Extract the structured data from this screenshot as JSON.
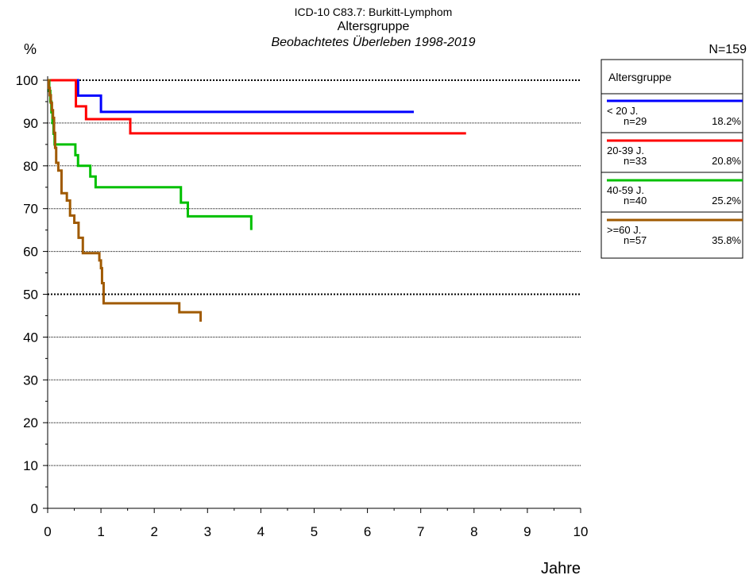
{
  "chart_data": {
    "type": "step",
    "title": "ICD-10 C83.7: Burkitt-Lymphom",
    "subtitle": "Altersgruppe",
    "subtitle2": "Beobachtetes Überleben 1998-2019",
    "y_label": "%",
    "x_label": "Jahre",
    "total_label": "N=159",
    "legend_title": "Altersgruppe",
    "xlim": [
      0,
      10
    ],
    "xticks": [
      0,
      1,
      2,
      3,
      4,
      5,
      6,
      7,
      8,
      9,
      10
    ],
    "ylim": [
      0,
      100
    ],
    "yticks": [
      0,
      10,
      20,
      30,
      40,
      50,
      60,
      70,
      80,
      90,
      100
    ],
    "grid": true,
    "emphasized_gridlines": [
      50,
      100
    ],
    "series": [
      {
        "name": "< 20 J.",
        "n_label": "n=29",
        "share_label": "18.2%",
        "color": "#0000ff",
        "x": [
          0,
          0.57,
          1.0,
          6.87
        ],
        "values": [
          100,
          96.4,
          92.6,
          92.6
        ]
      },
      {
        "name": "20-39 J.",
        "n_label": "n=33",
        "share_label": "20.8%",
        "color": "#ff0000",
        "x": [
          0,
          0.53,
          0.72,
          1.55,
          7.85
        ],
        "values": [
          100,
          93.9,
          90.9,
          87.6,
          87.6
        ]
      },
      {
        "name": "40-59 J.",
        "n_label": "n=40",
        "share_label": "25.2%",
        "color": "#00c000",
        "x": [
          0,
          0.03,
          0.05,
          0.07,
          0.09,
          0.11,
          0.13,
          0.52,
          0.57,
          0.8,
          0.9,
          2.5,
          2.63,
          3.82
        ],
        "values": [
          100,
          97.5,
          95,
          92.5,
          90,
          87.5,
          85,
          82.5,
          80,
          77.5,
          75,
          71.4,
          68.2,
          65
        ]
      },
      {
        "name": ">=60 J.",
        "n_label": "n=57",
        "share_label": "35.8%",
        "color": "#a05a00",
        "x": [
          0,
          0.02,
          0.04,
          0.06,
          0.08,
          0.1,
          0.12,
          0.14,
          0.16,
          0.2,
          0.26,
          0.36,
          0.42,
          0.5,
          0.58,
          0.66,
          0.97,
          1.0,
          1.02,
          1.05,
          2.47,
          2.87
        ],
        "values": [
          100,
          98.2,
          96.5,
          94.7,
          93,
          91.2,
          87.7,
          84.2,
          80.7,
          78.9,
          73.6,
          71.9,
          68.4,
          66.7,
          63.2,
          59.6,
          57.9,
          56.1,
          52.6,
          47.9,
          45.8,
          43.6
        ]
      }
    ]
  }
}
